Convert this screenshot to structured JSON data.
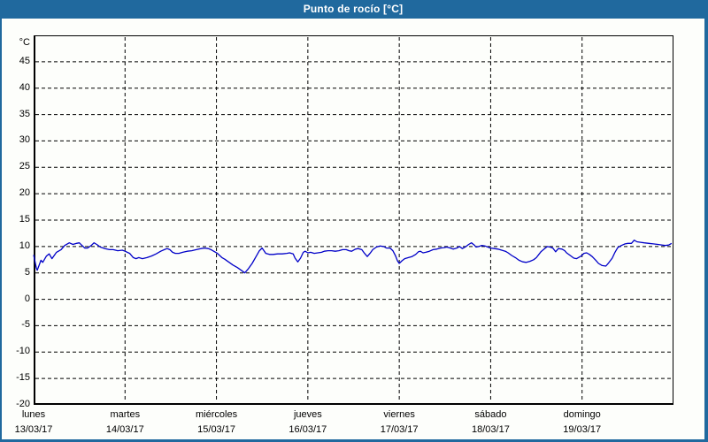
{
  "window": {
    "title": "Punto de rocío [°C]"
  },
  "colors": {
    "titlebar_bg": "#20699e",
    "frame_border": "#20699e",
    "page_bg": "#fdfefb",
    "grid": "#000000",
    "text": "#000000",
    "line": "#0000c8"
  },
  "chart_data": {
    "type": "line",
    "title": "Punto de rocío [°C]",
    "grid": "dashed",
    "legend": "none",
    "y_axis": {
      "unit_label": "°C",
      "min": -20,
      "max": 50,
      "tick_step": 5,
      "tick_labels": [
        "45",
        "40",
        "35",
        "30",
        "25",
        "20",
        "15",
        "10",
        "5",
        "0",
        "-5",
        "-10",
        "-15",
        "-20"
      ]
    },
    "x_axis": {
      "unit": "days",
      "days": [
        {
          "name": "lunes",
          "date": "13/03/17"
        },
        {
          "name": "martes",
          "date": "14/03/17"
        },
        {
          "name": "miércoles",
          "date": "15/03/17"
        },
        {
          "name": "jueves",
          "date": "16/03/17"
        },
        {
          "name": "viernes",
          "date": "17/03/17"
        },
        {
          "name": "sábado",
          "date": "18/03/17"
        },
        {
          "name": "domingo",
          "date": "19/03/17"
        }
      ]
    },
    "series": [
      {
        "name": "Punto de rocío",
        "color": "#0000c8",
        "x_unit": "days_from_start_of_monday",
        "points": [
          [
            0.0,
            8.4
          ],
          [
            0.03,
            5.9
          ],
          [
            0.04,
            5.5
          ],
          [
            0.08,
            7.4
          ],
          [
            0.1,
            7.0
          ],
          [
            0.14,
            8.2
          ],
          [
            0.17,
            8.6
          ],
          [
            0.2,
            7.7
          ],
          [
            0.25,
            8.9
          ],
          [
            0.3,
            9.4
          ],
          [
            0.34,
            10.2
          ],
          [
            0.39,
            10.7
          ],
          [
            0.43,
            10.4
          ],
          [
            0.47,
            10.6
          ],
          [
            0.5,
            10.7
          ],
          [
            0.53,
            10.2
          ],
          [
            0.56,
            9.7
          ],
          [
            0.59,
            9.7
          ],
          [
            0.63,
            10.2
          ],
          [
            0.66,
            10.7
          ],
          [
            0.69,
            10.4
          ],
          [
            0.73,
            9.9
          ],
          [
            0.78,
            9.6
          ],
          [
            0.83,
            9.4
          ],
          [
            0.87,
            9.4
          ],
          [
            0.92,
            9.2
          ],
          [
            0.97,
            9.3
          ],
          [
            1.0,
            9.1
          ],
          [
            1.05,
            8.7
          ],
          [
            1.09,
            7.9
          ],
          [
            1.12,
            7.7
          ],
          [
            1.15,
            7.9
          ],
          [
            1.19,
            7.7
          ],
          [
            1.24,
            7.9
          ],
          [
            1.29,
            8.2
          ],
          [
            1.34,
            8.6
          ],
          [
            1.39,
            9.1
          ],
          [
            1.43,
            9.4
          ],
          [
            1.46,
            9.6
          ],
          [
            1.49,
            9.4
          ],
          [
            1.52,
            8.9
          ],
          [
            1.55,
            8.7
          ],
          [
            1.59,
            8.7
          ],
          [
            1.63,
            8.9
          ],
          [
            1.68,
            9.1
          ],
          [
            1.73,
            9.2
          ],
          [
            1.78,
            9.4
          ],
          [
            1.83,
            9.6
          ],
          [
            1.87,
            9.7
          ],
          [
            1.91,
            9.6
          ],
          [
            1.94,
            9.4
          ],
          [
            1.97,
            9.1
          ],
          [
            2.01,
            8.7
          ],
          [
            2.06,
            7.9
          ],
          [
            2.09,
            7.6
          ],
          [
            2.14,
            7.0
          ],
          [
            2.18,
            6.5
          ],
          [
            2.23,
            6.0
          ],
          [
            2.27,
            5.5
          ],
          [
            2.31,
            5.0
          ],
          [
            2.35,
            5.8
          ],
          [
            2.39,
            6.8
          ],
          [
            2.43,
            8.0
          ],
          [
            2.47,
            9.2
          ],
          [
            2.5,
            9.7
          ],
          [
            2.52,
            9.2
          ],
          [
            2.54,
            8.7
          ],
          [
            2.58,
            8.5
          ],
          [
            2.62,
            8.5
          ],
          [
            2.67,
            8.6
          ],
          [
            2.72,
            8.6
          ],
          [
            2.77,
            8.7
          ],
          [
            2.8,
            8.8
          ],
          [
            2.84,
            8.6
          ],
          [
            2.86,
            7.8
          ],
          [
            2.89,
            7.1
          ],
          [
            2.92,
            7.8
          ],
          [
            2.95,
            8.9
          ],
          [
            2.97,
            9.1
          ],
          [
            3.0,
            8.8
          ],
          [
            3.03,
            8.9
          ],
          [
            3.07,
            8.7
          ],
          [
            3.11,
            8.8
          ],
          [
            3.15,
            8.9
          ],
          [
            3.18,
            9.1
          ],
          [
            3.22,
            9.2
          ],
          [
            3.26,
            9.2
          ],
          [
            3.3,
            9.1
          ],
          [
            3.34,
            9.2
          ],
          [
            3.38,
            9.4
          ],
          [
            3.42,
            9.4
          ],
          [
            3.45,
            9.2
          ],
          [
            3.48,
            9.1
          ],
          [
            3.52,
            9.5
          ],
          [
            3.55,
            9.6
          ],
          [
            3.59,
            9.4
          ],
          [
            3.62,
            8.7
          ],
          [
            3.65,
            8.1
          ],
          [
            3.68,
            8.7
          ],
          [
            3.71,
            9.4
          ],
          [
            3.75,
            9.9
          ],
          [
            3.79,
            10.1
          ],
          [
            3.83,
            10.0
          ],
          [
            3.86,
            9.7
          ],
          [
            3.9,
            9.7
          ],
          [
            3.93,
            9.2
          ],
          [
            3.96,
            8.2
          ],
          [
            3.98,
            7.3
          ],
          [
            4.0,
            6.8
          ],
          [
            4.03,
            7.3
          ],
          [
            4.06,
            7.7
          ],
          [
            4.1,
            7.9
          ],
          [
            4.14,
            8.1
          ],
          [
            4.18,
            8.5
          ],
          [
            4.21,
            9.0
          ],
          [
            4.23,
            9.1
          ],
          [
            4.26,
            8.8
          ],
          [
            4.29,
            8.9
          ],
          [
            4.33,
            9.1
          ],
          [
            4.37,
            9.4
          ],
          [
            4.41,
            9.5
          ],
          [
            4.45,
            9.7
          ],
          [
            4.49,
            9.8
          ],
          [
            4.52,
            9.9
          ],
          [
            4.56,
            9.7
          ],
          [
            4.59,
            9.5
          ],
          [
            4.63,
            9.7
          ],
          [
            4.66,
            10.0
          ],
          [
            4.69,
            9.6
          ],
          [
            4.73,
            10.0
          ],
          [
            4.76,
            10.4
          ],
          [
            4.79,
            10.7
          ],
          [
            4.82,
            10.3
          ],
          [
            4.84,
            9.9
          ],
          [
            4.87,
            10.0
          ],
          [
            4.9,
            10.2
          ],
          [
            4.94,
            10.1
          ],
          [
            4.97,
            9.9
          ],
          [
            5.0,
            9.7
          ],
          [
            5.04,
            9.6
          ],
          [
            5.08,
            9.5
          ],
          [
            5.12,
            9.3
          ],
          [
            5.16,
            9.1
          ],
          [
            5.19,
            8.8
          ],
          [
            5.23,
            8.3
          ],
          [
            5.27,
            7.9
          ],
          [
            5.31,
            7.4
          ],
          [
            5.35,
            7.1
          ],
          [
            5.39,
            7.0
          ],
          [
            5.43,
            7.2
          ],
          [
            5.47,
            7.5
          ],
          [
            5.5,
            7.9
          ],
          [
            5.55,
            9.0
          ],
          [
            5.59,
            9.6
          ],
          [
            5.62,
            10.0
          ],
          [
            5.65,
            9.9
          ],
          [
            5.68,
            9.7
          ],
          [
            5.71,
            9.0
          ],
          [
            5.74,
            9.6
          ],
          [
            5.78,
            9.5
          ],
          [
            5.81,
            9.2
          ],
          [
            5.83,
            8.8
          ],
          [
            5.87,
            8.3
          ],
          [
            5.91,
            7.8
          ],
          [
            5.94,
            7.7
          ],
          [
            5.97,
            8.0
          ],
          [
            5.99,
            8.2
          ],
          [
            6.02,
            8.7
          ],
          [
            6.05,
            8.8
          ],
          [
            6.08,
            8.5
          ],
          [
            6.11,
            8.1
          ],
          [
            6.15,
            7.4
          ],
          [
            6.18,
            6.8
          ],
          [
            6.22,
            6.4
          ],
          [
            6.26,
            6.3
          ],
          [
            6.29,
            6.9
          ],
          [
            6.33,
            7.8
          ],
          [
            6.36,
            8.9
          ],
          [
            6.39,
            9.8
          ],
          [
            6.43,
            10.2
          ],
          [
            6.47,
            10.5
          ],
          [
            6.5,
            10.6
          ],
          [
            6.54,
            10.6
          ],
          [
            6.57,
            11.2
          ],
          [
            6.6,
            10.9
          ],
          [
            6.64,
            10.8
          ],
          [
            6.68,
            10.7
          ],
          [
            6.73,
            10.6
          ],
          [
            6.78,
            10.5
          ],
          [
            6.83,
            10.4
          ],
          [
            6.87,
            10.3
          ],
          [
            6.91,
            10.2
          ],
          [
            6.95,
            10.3
          ],
          [
            6.98,
            10.6
          ]
        ]
      }
    ]
  }
}
